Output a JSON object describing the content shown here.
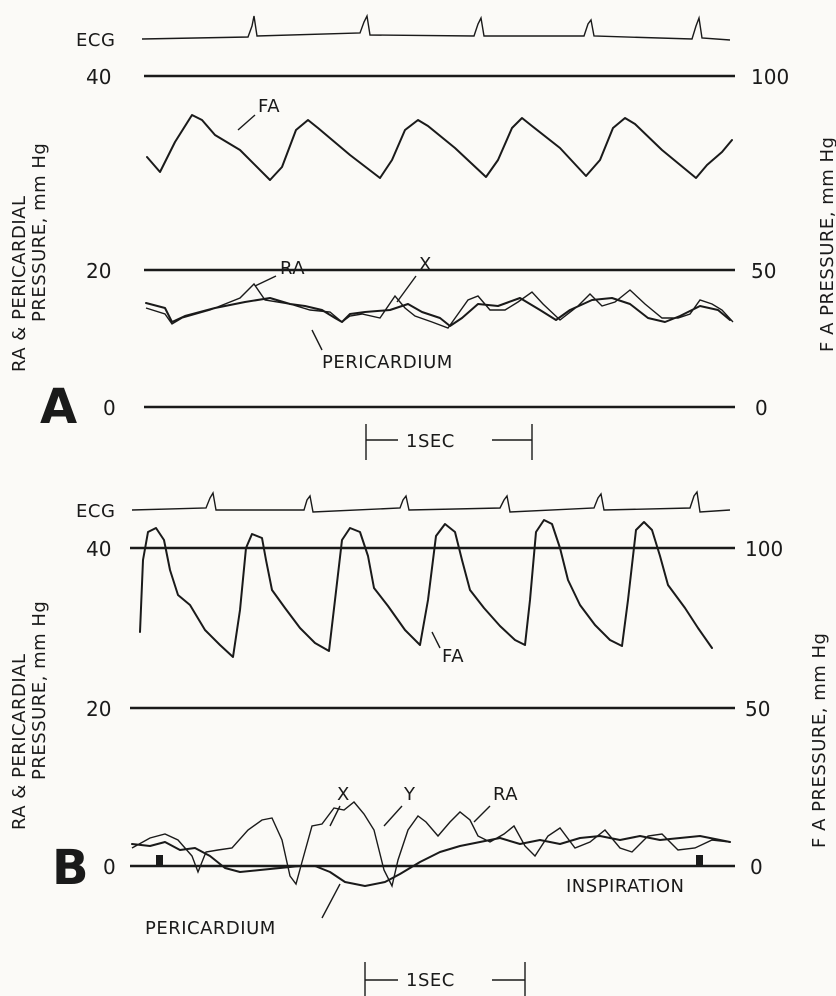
{
  "chart_data": [
    {
      "panel": "A",
      "type": "line",
      "left_axis": {
        "label": "RA & PERICARDIAL PRESSURE, mm Hg",
        "ticks": [
          0,
          20,
          40
        ],
        "ylim": [
          0,
          40
        ]
      },
      "right_axis": {
        "label": "F A PRESSURE, mm Hg",
        "ticks": [
          0,
          50,
          100
        ],
        "ylim": [
          0,
          100
        ]
      },
      "time_scale_label": "1SEC",
      "ecg_label": "ECG",
      "annotations": [
        "FA",
        "RA",
        "X",
        "PERICARDIUM"
      ],
      "series": [
        {
          "name": "FA",
          "axis": "right",
          "t": [
            0,
            0.5,
            1.0,
            1.5,
            2.0,
            2.5,
            3.0,
            3.5
          ],
          "values": [
            74,
            68,
            88,
            70,
            88,
            70,
            89,
            70
          ]
        },
        {
          "name": "RA",
          "axis": "left",
          "t": [
            0,
            0.5,
            1.0,
            1.5,
            2.0,
            2.5,
            3.0,
            3.5
          ],
          "values": [
            13,
            10,
            15,
            9,
            14,
            9,
            15,
            12
          ]
        },
        {
          "name": "PERICARDIUM",
          "axis": "left",
          "t": [
            0,
            0.5,
            1.0,
            1.5,
            2.0,
            2.5,
            3.0,
            3.5
          ],
          "values": [
            13,
            10,
            13,
            9,
            13,
            9,
            13,
            12
          ]
        }
      ]
    },
    {
      "panel": "B",
      "type": "line",
      "left_axis": {
        "label": "RA & PERICARDIAL PRESSURE, mm Hg",
        "ticks": [
          0,
          20,
          40
        ],
        "ylim": [
          0,
          40
        ]
      },
      "right_axis": {
        "label": "F A PRESSURE, mm Hg",
        "ticks": [
          0,
          50,
          100
        ],
        "ylim": [
          0,
          100
        ]
      },
      "time_scale_label": "1SEC",
      "ecg_label": "ECG",
      "annotations": [
        "FA",
        "X",
        "Y",
        "RA",
        "PERICARDIUM",
        "INSPIRATION"
      ],
      "series": [
        {
          "name": "FA",
          "axis": "right",
          "t": [
            0,
            0.3,
            0.8,
            1.3,
            1.8,
            2.3,
            2.8,
            3.3
          ],
          "values": [
            58,
            104,
            55,
            104,
            55,
            104,
            56,
            55
          ]
        },
        {
          "name": "RA",
          "axis": "left",
          "t": [
            0,
            0.5,
            1.0,
            1.5,
            2.0,
            2.5,
            3.0,
            3.5
          ],
          "values": [
            3,
            2,
            7,
            0,
            7,
            3,
            3,
            3
          ]
        },
        {
          "name": "PERICARDIUM",
          "axis": "left",
          "t": [
            0,
            0.5,
            1.0,
            1.5,
            2.0,
            2.5,
            3.0,
            3.5
          ],
          "values": [
            2,
            0,
            -1,
            -2,
            4,
            4,
            3,
            3
          ]
        }
      ]
    }
  ]
}
